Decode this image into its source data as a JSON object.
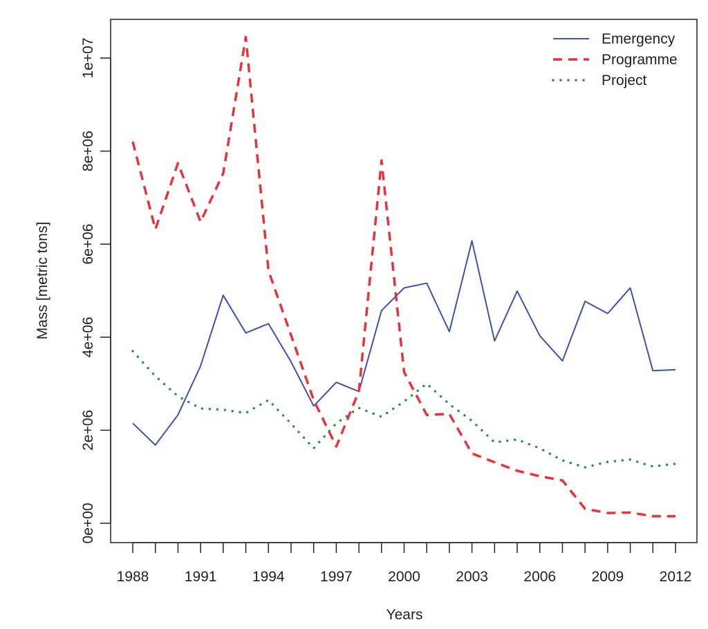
{
  "chart_data": {
    "type": "line",
    "title": "",
    "xlabel": "Years",
    "ylabel": "Mass [metric tons]",
    "x": [
      1988,
      1989,
      1990,
      1991,
      1992,
      1993,
      1994,
      1995,
      1996,
      1997,
      1998,
      1999,
      2000,
      2001,
      2002,
      2003,
      2004,
      2005,
      2006,
      2007,
      2008,
      2009,
      2010,
      2011,
      2012
    ],
    "xlim": [
      1987,
      2013
    ],
    "ylim": [
      -400000,
      10800000
    ],
    "x_ticks": [
      1988,
      1991,
      1994,
      1997,
      2000,
      2003,
      2006,
      2009,
      2012
    ],
    "x_tick_labels": [
      "1988",
      "1991",
      "1994",
      "1997",
      "2000",
      "2003",
      "2006",
      "2009",
      "2012"
    ],
    "y_ticks": [
      0,
      2000000,
      4000000,
      6000000,
      8000000,
      10000000
    ],
    "y_tick_labels": [
      "0e+00",
      "2e+06",
      "4e+06",
      "6e+06",
      "8e+06",
      "1e+07"
    ],
    "legend_position": "top-right",
    "grid": false,
    "series": [
      {
        "name": "Emergency",
        "color": "#3f51a8",
        "style": "solid",
        "values": [
          2150000,
          1680000,
          2330000,
          3380000,
          4900000,
          4090000,
          4290000,
          3470000,
          2520000,
          3030000,
          2830000,
          4570000,
          5060000,
          5160000,
          4120000,
          6070000,
          3920000,
          4990000,
          4030000,
          3490000,
          4770000,
          4510000,
          5060000,
          3280000,
          3300000
        ]
      },
      {
        "name": "Programme",
        "color": "#e8323b",
        "style": "dashed",
        "values": [
          8200000,
          6320000,
          7740000,
          6480000,
          7520000,
          10450000,
          5430000,
          4040000,
          2650000,
          1650000,
          2840000,
          7800000,
          3250000,
          2330000,
          2350000,
          1500000,
          1310000,
          1130000,
          1010000,
          920000,
          310000,
          220000,
          230000,
          150000,
          150000
        ]
      },
      {
        "name": "Project",
        "color": "#2e8b47",
        "style": "dotted",
        "values": [
          3700000,
          3160000,
          2730000,
          2470000,
          2440000,
          2370000,
          2650000,
          2140000,
          1610000,
          2150000,
          2480000,
          2290000,
          2620000,
          3000000,
          2560000,
          2200000,
          1740000,
          1800000,
          1610000,
          1350000,
          1200000,
          1320000,
          1370000,
          1220000,
          1280000
        ]
      }
    ]
  }
}
